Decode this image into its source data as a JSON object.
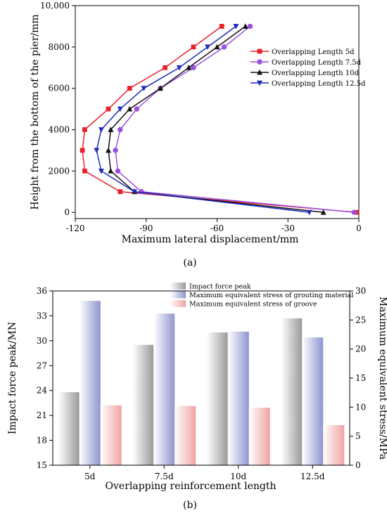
{
  "chart_data": [
    {
      "type": "line",
      "caption": "(a)",
      "xlabel": "Maximum lateral displacement/mm",
      "ylabel": "Height from the bottom of the pier/mm",
      "xlim": [
        -120,
        0
      ],
      "ylim": [
        0,
        10000
      ],
      "xticks": [
        "-120",
        "-90",
        "-60",
        "-30",
        "0"
      ],
      "xtick_values": [
        -120,
        -90,
        -60,
        -30,
        0
      ],
      "yticks": [
        "0",
        "2000",
        "4000",
        "6000",
        "8000",
        "10,000"
      ],
      "ytick_values": [
        0,
        2000,
        4000,
        6000,
        8000,
        10000
      ],
      "y": [
        0,
        1000,
        2000,
        3000,
        4000,
        5000,
        6000,
        7000,
        8000,
        9000
      ],
      "legend_position": "right",
      "series": [
        {
          "name": "Overlapping Length 5d",
          "color": "#e8212b",
          "marker": "square",
          "x": [
            -1,
            -101,
            -116,
            -117,
            -116,
            -106,
            -97,
            -82,
            -70,
            -58
          ]
        },
        {
          "name": "Overlapping Length 7.5d",
          "color": "#9b4fe0",
          "marker": "circle",
          "x": [
            -2,
            -92,
            -102,
            -103,
            -101,
            -94,
            -84,
            -70,
            -57,
            -46
          ]
        },
        {
          "name": "Overlapping Length 10d",
          "color": "#111111",
          "marker": "triangle-up",
          "x": [
            -15,
            -95,
            -105,
            -106,
            -105,
            -97,
            -84,
            -72,
            -60,
            -48
          ]
        },
        {
          "name": "Overlapping Length 12.5d",
          "color": "#1f2bbf",
          "marker": "triangle-down",
          "x": [
            -21,
            -95,
            -109,
            -111,
            -109,
            -101,
            -91,
            -76,
            -64,
            -52
          ]
        }
      ]
    },
    {
      "type": "bar",
      "caption": "(b)",
      "xlabel": "Overlapping reinforcement length",
      "ylabel": "Impact force peak/MN",
      "ylabel_right": "Maximum equivalent stress/MPa",
      "categories": [
        "5d",
        "7.5d",
        "10d",
        "12.5d"
      ],
      "ylim": [
        15,
        36
      ],
      "ylim_right": [
        0,
        30
      ],
      "yticks": [
        "15",
        "18",
        "21",
        "24",
        "27",
        "30",
        "33",
        "36"
      ],
      "ytick_values": [
        15,
        18,
        21,
        24,
        27,
        30,
        33,
        36
      ],
      "yticks_right": [
        "0",
        "5",
        "10",
        "15",
        "20",
        "25",
        "30"
      ],
      "ytick_values_right": [
        0,
        5,
        10,
        15,
        20,
        25,
        30
      ],
      "legend_position": "top-center",
      "series": [
        {
          "name": "Impact force peak",
          "axis": "left",
          "color": "#9a9a9a",
          "values": [
            23.8,
            29.5,
            31.0,
            32.7
          ]
        },
        {
          "name": "Maximum equivalent stress of grouting material",
          "axis": "right",
          "color": "#8f96cf",
          "values": [
            28.3,
            26.1,
            23.0,
            22.0
          ]
        },
        {
          "name": "Maximum equivalent stress of groove",
          "axis": "right",
          "color": "#f0a3a3",
          "values": [
            10.3,
            10.2,
            9.9,
            6.9
          ]
        }
      ]
    }
  ]
}
